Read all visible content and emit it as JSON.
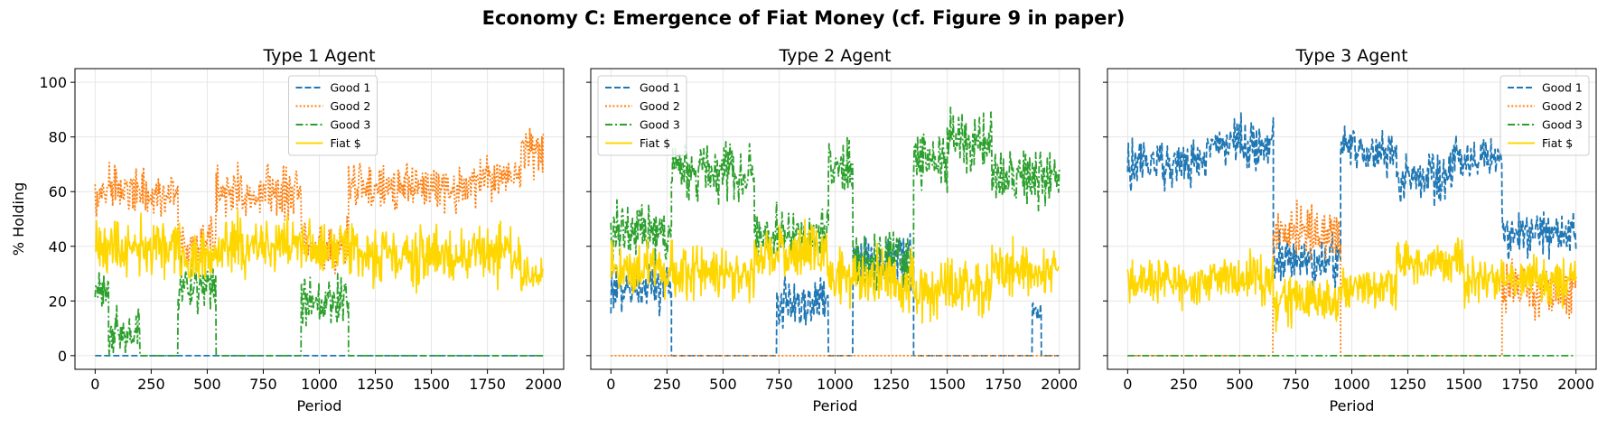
{
  "suptitle": "Economy C: Emergence of Fiat Money (cf. Figure 9 in paper)",
  "colors": {
    "good1": "#1f77b4",
    "good2": "#ff7f0e",
    "good3": "#2ca02c",
    "fiat": "#ffd700"
  },
  "chart_data": [
    {
      "type": "line",
      "title": "Type 1 Agent",
      "xlabel": "Period",
      "ylabel": "% Holding",
      "xlim": [
        -90,
        2090
      ],
      "ylim": [
        -5,
        105
      ],
      "xticks": [
        0,
        250,
        500,
        750,
        1000,
        1250,
        1500,
        1750,
        2000
      ],
      "yticks": [
        0,
        20,
        40,
        60,
        80,
        100
      ],
      "grid": true,
      "legend": "upper-center",
      "legend_entries": [
        "Good 1",
        "Good 2",
        "Good 3",
        "Fiat $"
      ],
      "series": [
        {
          "name": "Good 1",
          "color": "#1f77b4",
          "dash": "dashed",
          "noise": 0,
          "segments": [
            [
              0,
              2000,
              0
            ]
          ]
        },
        {
          "name": "Good 2",
          "color": "#ff7f0e",
          "dash": "dotted",
          "noise": 6,
          "segments": [
            [
              0,
              370,
              60
            ],
            [
              370,
              540,
              40
            ],
            [
              540,
              920,
              60
            ],
            [
              920,
              1130,
              40
            ],
            [
              1130,
              1700,
              62
            ],
            [
              1700,
              1900,
              65
            ],
            [
              1900,
              2000,
              75
            ]
          ]
        },
        {
          "name": "Good 3",
          "color": "#2ca02c",
          "dash": "dashdot",
          "noise": 6,
          "segments": [
            [
              0,
              60,
              25
            ],
            [
              60,
              200,
              8
            ],
            [
              200,
              370,
              0
            ],
            [
              370,
              540,
              25
            ],
            [
              540,
              920,
              0
            ],
            [
              920,
              1130,
              20
            ],
            [
              1130,
              2000,
              0
            ]
          ]
        },
        {
          "name": "Fiat $",
          "color": "#ffd700",
          "dash": "solid",
          "noise": 7,
          "segments": [
            [
              0,
              370,
              40
            ],
            [
              370,
              540,
              35
            ],
            [
              540,
              920,
              40
            ],
            [
              920,
              1130,
              40
            ],
            [
              1130,
              1900,
              37
            ],
            [
              1900,
              2000,
              30
            ]
          ]
        }
      ]
    },
    {
      "type": "line",
      "title": "Type 2 Agent",
      "xlabel": "Period",
      "ylabel": "",
      "xlim": [
        -90,
        2090
      ],
      "ylim": [
        -5,
        105
      ],
      "xticks": [
        0,
        250,
        500,
        750,
        1000,
        1250,
        1500,
        1750,
        2000
      ],
      "yticks": [
        0,
        20,
        40,
        60,
        80,
        100
      ],
      "grid": true,
      "legend": "upper-left",
      "legend_entries": [
        "Good 1",
        "Good 2",
        "Good 3",
        "Fiat $"
      ],
      "series": [
        {
          "name": "Good 1",
          "color": "#1f77b4",
          "dash": "dashed",
          "noise": 6,
          "segments": [
            [
              0,
              270,
              25
            ],
            [
              270,
              740,
              0
            ],
            [
              740,
              970,
              20
            ],
            [
              970,
              1080,
              0
            ],
            [
              1080,
              1350,
              35
            ],
            [
              1350,
              1880,
              0
            ],
            [
              1880,
              1920,
              18
            ],
            [
              1920,
              2000,
              0
            ]
          ]
        },
        {
          "name": "Good 2",
          "color": "#ff7f0e",
          "dash": "dotted",
          "noise": 0,
          "segments": [
            [
              0,
              2000,
              0
            ]
          ]
        },
        {
          "name": "Good 3",
          "color": "#2ca02c",
          "dash": "dashdot",
          "noise": 7,
          "segments": [
            [
              0,
              270,
              45
            ],
            [
              270,
              640,
              68
            ],
            [
              640,
              970,
              45
            ],
            [
              970,
              1080,
              68
            ],
            [
              1080,
              1350,
              35
            ],
            [
              1350,
              1500,
              72
            ],
            [
              1500,
              1700,
              78
            ],
            [
              1700,
              2000,
              65
            ]
          ]
        },
        {
          "name": "Fiat $",
          "color": "#ffd700",
          "dash": "solid",
          "noise": 7,
          "segments": [
            [
              0,
              270,
              32
            ],
            [
              270,
              640,
              30
            ],
            [
              640,
              970,
              38
            ],
            [
              970,
              1350,
              28
            ],
            [
              1350,
              1700,
              25
            ],
            [
              1700,
              2000,
              32
            ]
          ]
        }
      ]
    },
    {
      "type": "line",
      "title": "Type 3 Agent",
      "xlabel": "Period",
      "ylabel": "",
      "xlim": [
        -90,
        2090
      ],
      "ylim": [
        -5,
        105
      ],
      "xticks": [
        0,
        250,
        500,
        750,
        1000,
        1250,
        1500,
        1750,
        2000
      ],
      "yticks": [
        0,
        20,
        40,
        60,
        80,
        100
      ],
      "grid": true,
      "legend": "upper-right",
      "legend_entries": [
        "Good 1",
        "Good 2",
        "Good 3",
        "Fiat $"
      ],
      "series": [
        {
          "name": "Good 1",
          "color": "#1f77b4",
          "dash": "dashed",
          "noise": 6,
          "segments": [
            [
              0,
              350,
              70
            ],
            [
              350,
              650,
              78
            ],
            [
              650,
              950,
              35
            ],
            [
              950,
              1200,
              75
            ],
            [
              1200,
              1450,
              65
            ],
            [
              1450,
              1670,
              72
            ],
            [
              1670,
              2000,
              45
            ]
          ]
        },
        {
          "name": "Good 2",
          "color": "#ff7f0e",
          "dash": "dotted",
          "noise": 7,
          "segments": [
            [
              0,
              650,
              0
            ],
            [
              650,
              950,
              45
            ],
            [
              950,
              1670,
              0
            ],
            [
              1670,
              2000,
              25
            ]
          ]
        },
        {
          "name": "Good 3",
          "color": "#2ca02c",
          "dash": "dashdot",
          "noise": 0,
          "segments": [
            [
              0,
              2000,
              0
            ]
          ]
        },
        {
          "name": "Fiat $",
          "color": "#ffd700",
          "dash": "solid",
          "noise": 6,
          "segments": [
            [
              0,
              650,
              28
            ],
            [
              650,
              950,
              20
            ],
            [
              950,
              1200,
              25
            ],
            [
              1200,
              1500,
              35
            ],
            [
              1500,
              2000,
              28
            ]
          ]
        }
      ]
    }
  ]
}
